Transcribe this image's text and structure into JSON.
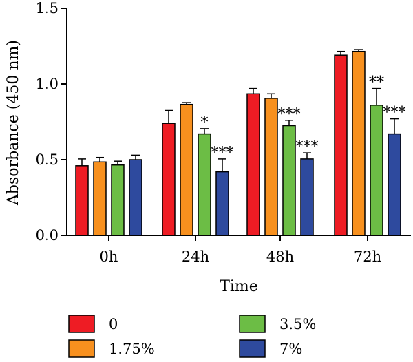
{
  "chart_data": {
    "type": "bar",
    "xlabel": "Time",
    "ylabel": "Absorbance (450 nm)",
    "ylim": [
      0,
      1.5
    ],
    "yticks": [
      "0.0",
      "0.5",
      "1.0",
      "1.5"
    ],
    "ytick_values": [
      0,
      0.5,
      1.0,
      1.5
    ],
    "categories": [
      "0h",
      "24h",
      "48h",
      "72h"
    ],
    "series": [
      {
        "name": "0",
        "color": "#ee1c24",
        "values": [
          0.46,
          0.74,
          0.935,
          1.19
        ],
        "errors": [
          0.045,
          0.085,
          0.035,
          0.025
        ],
        "significance": [
          "",
          "",
          "",
          ""
        ]
      },
      {
        "name": "1.75%",
        "color": "#f7901e",
        "values": [
          0.485,
          0.865,
          0.905,
          1.215
        ],
        "errors": [
          0.03,
          0.012,
          0.03,
          0.012
        ],
        "significance": [
          "",
          "",
          "",
          ""
        ]
      },
      {
        "name": "3.5%",
        "color": "#6cbd45",
        "values": [
          0.465,
          0.67,
          0.725,
          0.86
        ],
        "errors": [
          0.025,
          0.035,
          0.035,
          0.11
        ],
        "significance": [
          "",
          "*",
          "***",
          "**"
        ]
      },
      {
        "name": "7%",
        "color": "#2e4a9e",
        "values": [
          0.5,
          0.42,
          0.505,
          0.67
        ],
        "errors": [
          0.03,
          0.085,
          0.04,
          0.1
        ],
        "significance": [
          "",
          "***",
          "***",
          "***"
        ]
      }
    ],
    "legend_position": "bottom"
  }
}
